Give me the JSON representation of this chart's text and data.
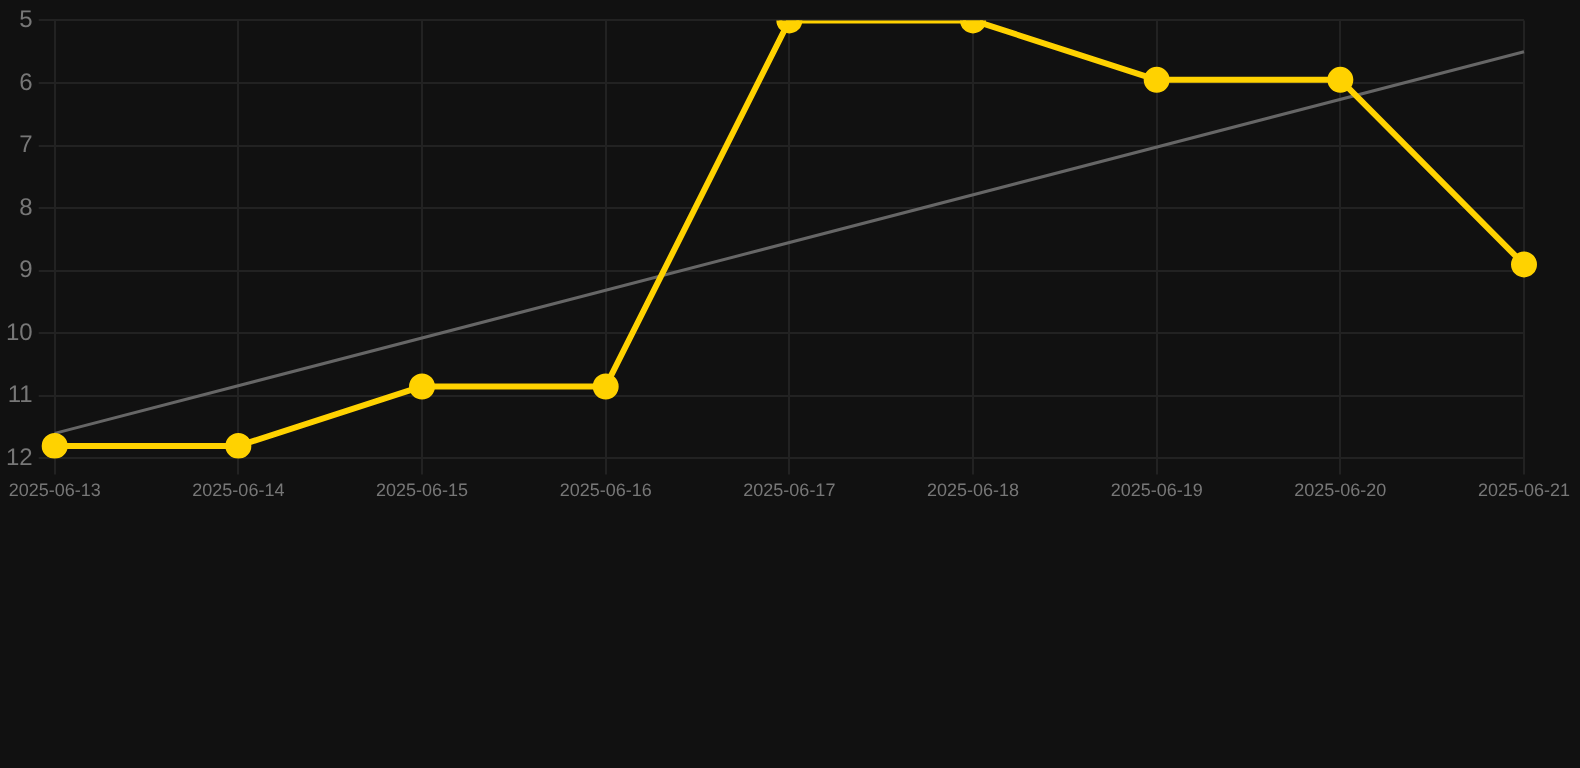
{
  "chart_data": {
    "type": "line",
    "categories": [
      "2025-06-13",
      "2025-06-14",
      "2025-06-15",
      "2025-06-16",
      "2025-06-17",
      "2025-06-18",
      "2025-06-19",
      "2025-06-20",
      "2025-06-21"
    ],
    "series": [
      {
        "color": "#ffd200",
        "values": [
          11.8,
          11.8,
          10.85,
          10.85,
          5,
          5,
          5.95,
          5.95,
          8.9
        ],
        "marker": "circle"
      },
      {
        "type": "line",
        "color": "#666666",
        "values": [
          11.6,
          null,
          null,
          null,
          null,
          null,
          null,
          null,
          5.5
        ],
        "marker": "none"
      }
    ],
    "ylim": [
      12,
      5
    ],
    "yticks": [
      5,
      6,
      7,
      8,
      9,
      10,
      11,
      12
    ],
    "grid": true,
    "legend": false
  }
}
